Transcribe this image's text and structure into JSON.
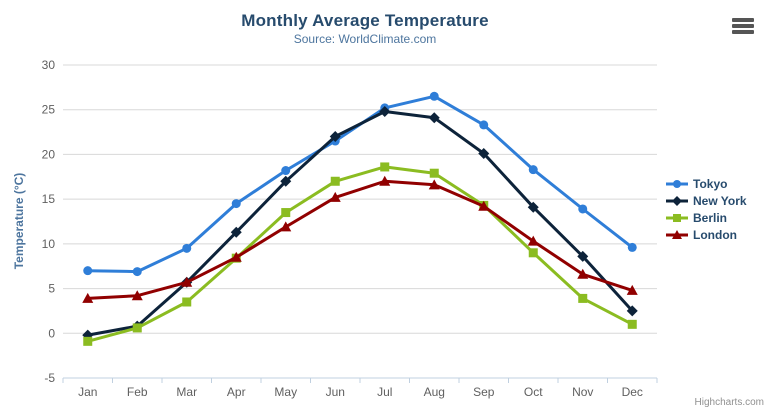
{
  "header": {
    "title": "Monthly Average Temperature",
    "subtitle": "Source: WorldClimate.com"
  },
  "credits": {
    "label": "Highcharts.com"
  },
  "toolbar": {
    "export_menu_icon": "hamburger-icon"
  },
  "chart_data": {
    "type": "line",
    "title": "Monthly Average Temperature",
    "subtitle": "Source: WorldClimate.com",
    "categories": [
      "Jan",
      "Feb",
      "Mar",
      "Apr",
      "May",
      "Jun",
      "Jul",
      "Aug",
      "Sep",
      "Oct",
      "Nov",
      "Dec"
    ],
    "series": [
      {
        "name": "Tokyo",
        "color": "#2f7ed8",
        "marker": "circle",
        "values": [
          7.0,
          6.9,
          9.5,
          14.5,
          18.2,
          21.5,
          25.2,
          26.5,
          23.3,
          18.3,
          13.9,
          9.6
        ]
      },
      {
        "name": "New York",
        "color": "#0d233a",
        "marker": "diamond",
        "values": [
          -0.2,
          0.8,
          5.7,
          11.3,
          17.0,
          22.0,
          24.8,
          24.1,
          20.1,
          14.1,
          8.6,
          2.5
        ]
      },
      {
        "name": "Berlin",
        "color": "#8bbc21",
        "marker": "square",
        "values": [
          -0.9,
          0.6,
          3.5,
          8.4,
          13.5,
          17.0,
          18.6,
          17.9,
          14.3,
          9.0,
          3.9,
          1.0
        ]
      },
      {
        "name": "London",
        "color": "#910000",
        "marker": "triangle",
        "values": [
          3.9,
          4.2,
          5.7,
          8.5,
          11.9,
          15.2,
          17.0,
          16.6,
          14.2,
          10.3,
          6.6,
          4.8
        ]
      }
    ],
    "xlabel": "",
    "ylabel": "Temperature (°C)",
    "ylim": [
      -5,
      30
    ],
    "yticks": [
      -5,
      0,
      5,
      10,
      15,
      20,
      25,
      30
    ],
    "grid": true,
    "legend_position": "right"
  },
  "colors": {
    "title": "#274b6d",
    "subtitle": "#4d759e",
    "axis_title": "#4d759e",
    "tick_label": "#606060",
    "gridline": "#d8d8d8",
    "axis_line": "#c0d0e0",
    "legend_text": "#274b6d",
    "credits": "#909090"
  }
}
